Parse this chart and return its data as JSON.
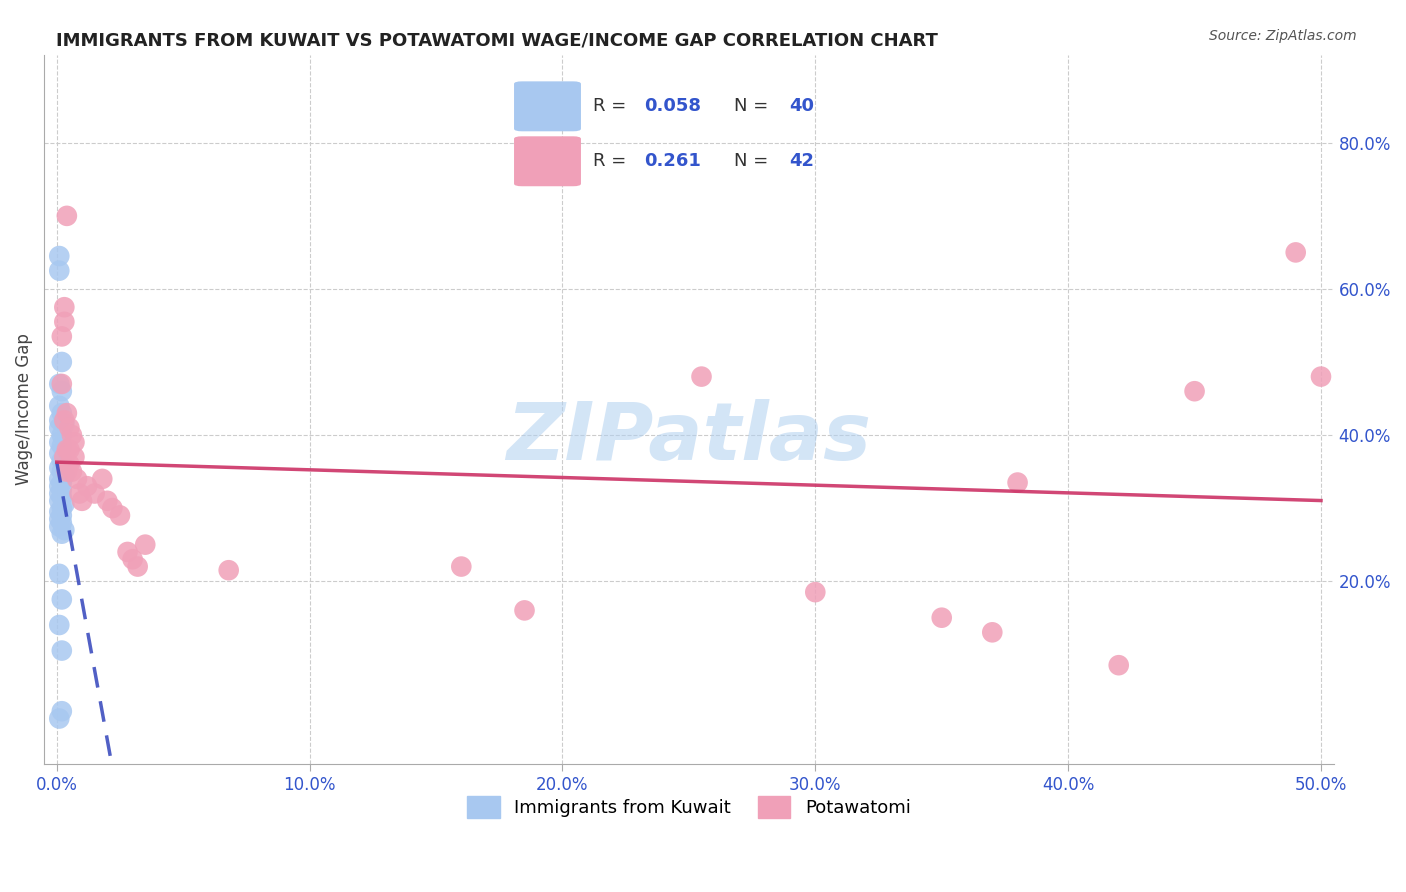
{
  "title": "IMMIGRANTS FROM KUWAIT VS POTAWATOMI WAGE/INCOME GAP CORRELATION CHART",
  "source": "Source: ZipAtlas.com",
  "xlabel_blue": "Immigrants from Kuwait",
  "xlabel_pink": "Potawatomi",
  "ylabel": "Wage/Income Gap",
  "xlim": [
    -0.005,
    0.505
  ],
  "ylim": [
    -0.05,
    0.92
  ],
  "xticks": [
    0.0,
    0.1,
    0.2,
    0.3,
    0.4,
    0.5
  ],
  "xtick_labels": [
    "0.0%",
    "10.0%",
    "20.0%",
    "30.0%",
    "40.0%",
    "50.0%"
  ],
  "yticks": [
    0.2,
    0.4,
    0.6,
    0.8
  ],
  "ytick_labels": [
    "20.0%",
    "40.0%",
    "60.0%",
    "80.0%"
  ],
  "R_blue": 0.058,
  "N_blue": 40,
  "R_pink": 0.261,
  "N_pink": 42,
  "blue_color": "#a8c8f0",
  "pink_color": "#f0a0b8",
  "blue_line_color": "#3344bb",
  "pink_line_color": "#cc3366",
  "watermark": "ZIPatlas",
  "watermark_color": "#b0d0f0",
  "blue_x": [
    0.001,
    0.001,
    0.002,
    0.001,
    0.002,
    0.001,
    0.002,
    0.001,
    0.003,
    0.001,
    0.002,
    0.001,
    0.002,
    0.001,
    0.002,
    0.001,
    0.002,
    0.003,
    0.001,
    0.002,
    0.001,
    0.002,
    0.001,
    0.002,
    0.001,
    0.003,
    0.002,
    0.001,
    0.002,
    0.001,
    0.002,
    0.001,
    0.003,
    0.002,
    0.001,
    0.002,
    0.001,
    0.002,
    0.001,
    0.002
  ],
  "blue_y": [
    0.645,
    0.625,
    0.5,
    0.47,
    0.46,
    0.44,
    0.43,
    0.42,
    0.415,
    0.41,
    0.4,
    0.39,
    0.385,
    0.375,
    0.365,
    0.355,
    0.35,
    0.345,
    0.34,
    0.335,
    0.33,
    0.325,
    0.32,
    0.315,
    0.31,
    0.305,
    0.3,
    0.295,
    0.29,
    0.285,
    0.28,
    0.275,
    0.27,
    0.265,
    0.21,
    0.175,
    0.14,
    0.105,
    0.012,
    0.022
  ],
  "pink_x": [
    0.002,
    0.003,
    0.004,
    0.003,
    0.002,
    0.004,
    0.003,
    0.005,
    0.004,
    0.003,
    0.005,
    0.004,
    0.006,
    0.005,
    0.007,
    0.006,
    0.008,
    0.007,
    0.009,
    0.01,
    0.012,
    0.015,
    0.018,
    0.02,
    0.022,
    0.025,
    0.028,
    0.03,
    0.032,
    0.035,
    0.068,
    0.16,
    0.185,
    0.255,
    0.3,
    0.35,
    0.37,
    0.38,
    0.42,
    0.45,
    0.49,
    0.5
  ],
  "pink_y": [
    0.535,
    0.555,
    0.7,
    0.575,
    0.47,
    0.43,
    0.42,
    0.41,
    0.38,
    0.37,
    0.36,
    0.35,
    0.4,
    0.38,
    0.39,
    0.35,
    0.34,
    0.37,
    0.32,
    0.31,
    0.33,
    0.32,
    0.34,
    0.31,
    0.3,
    0.29,
    0.24,
    0.23,
    0.22,
    0.25,
    0.215,
    0.22,
    0.16,
    0.48,
    0.185,
    0.15,
    0.13,
    0.335,
    0.085,
    0.46,
    0.65,
    0.48
  ]
}
